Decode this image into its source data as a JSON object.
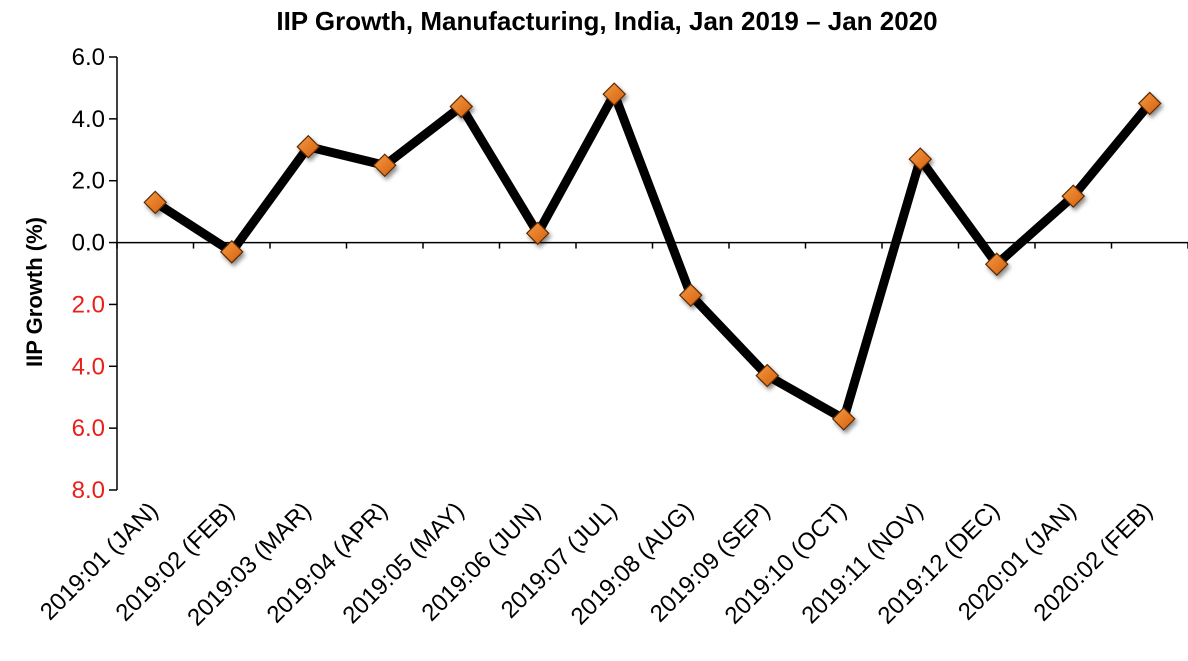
{
  "chart_data": {
    "type": "line",
    "title": "IIP Growth, Manufacturing, India, Jan 2019 – Jan 2020",
    "xlabel": "",
    "ylabel": "IIP Growth (%)",
    "ylim": [
      -8.0,
      6.0
    ],
    "y_ticks": [
      6.0,
      4.0,
      2.0,
      0.0,
      -2.0,
      -4.0,
      -6.0,
      -8.0
    ],
    "y_tick_labels": [
      "6.0",
      "4.0",
      "2.0",
      "0.0",
      "2.0",
      "4.0",
      "6.0",
      "8.0"
    ],
    "positive_tick_color": "#000000",
    "negative_tick_color": "#e8201a",
    "categories": [
      "2019:01 (JAN)",
      "2019:02 (FEB)",
      "2019:03 (MAR)",
      "2019:04 (APR)",
      "2019:05 (MAY)",
      "2019:06 (JUN)",
      "2019:07 (JUL)",
      "2019:08 (AUG)",
      "2019:09 (SEP)",
      "2019:10 (OCT)",
      "2019:11 (NOV)",
      "2019:12 (DEC)",
      "2020:01 (JAN)",
      "2020:02 (FEB)"
    ],
    "series": [
      {
        "values": [
          1.3,
          -0.3,
          3.1,
          2.5,
          4.4,
          0.3,
          4.8,
          -1.7,
          -4.3,
          -5.7,
          2.7,
          -0.7,
          1.5,
          4.5
        ],
        "line_color": "#000000",
        "marker": "diamond",
        "marker_color": "#e8761a"
      }
    ],
    "grid": false,
    "legend": "none"
  }
}
